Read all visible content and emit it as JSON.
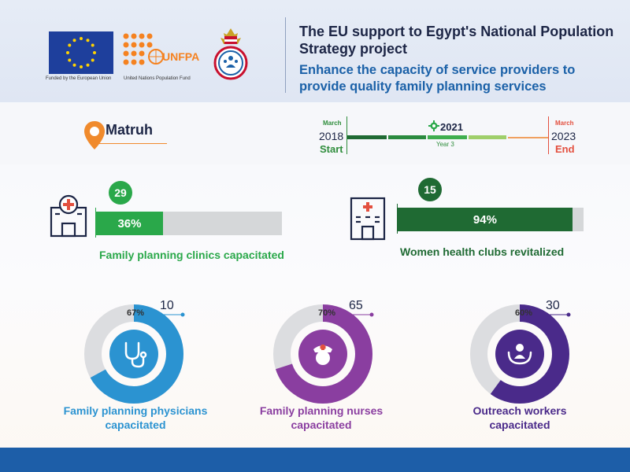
{
  "header": {
    "title": "The EU support to Egypt's National Population Strategy project",
    "subtitle": "Enhance the capacity of service providers to provide quality family planning services",
    "eu_caption": "Funded by the European Union",
    "unfpa_name": "UNFPA",
    "unfpa_caption": "United Nations Population Fund"
  },
  "location": {
    "name": "Matruh",
    "icon": "location-pin-icon"
  },
  "timeline": {
    "start_month": "March",
    "start_year": "2018",
    "start_label": "Start",
    "current_year": "2021",
    "current_label": "Year 3",
    "end_month": "March",
    "end_year": "2023",
    "end_label": "End"
  },
  "bar_metrics": [
    {
      "count": "29",
      "percent": 36,
      "percent_text": "36%",
      "label": "Family planning clinics capacitated",
      "color": "#2aa84a",
      "icon": "clinic-building-icon"
    },
    {
      "count": "15",
      "percent": 94,
      "percent_text": "94%",
      "label": "Women health clubs revitalized",
      "color": "#1f6a33",
      "icon": "hospital-building-icon"
    }
  ],
  "donut_metrics": [
    {
      "percent": 67,
      "percent_text": "67%",
      "count": "10",
      "label_line1": "Family planning physicians",
      "label_line2": "capacitated",
      "color": "#2b93d1",
      "icon": "stethoscope-icon"
    },
    {
      "percent": 70,
      "percent_text": "70%",
      "count": "65",
      "label_line1": "Family planning nurses",
      "label_line2": "capacitated",
      "color": "#8a3ea0",
      "icon": "nurse-icon"
    },
    {
      "percent": 60,
      "percent_text": "60%",
      "count": "30",
      "label_line1": "Outreach workers",
      "label_line2": "capacitated",
      "color": "#4a2a8a",
      "icon": "caring-hands-icon"
    }
  ]
}
